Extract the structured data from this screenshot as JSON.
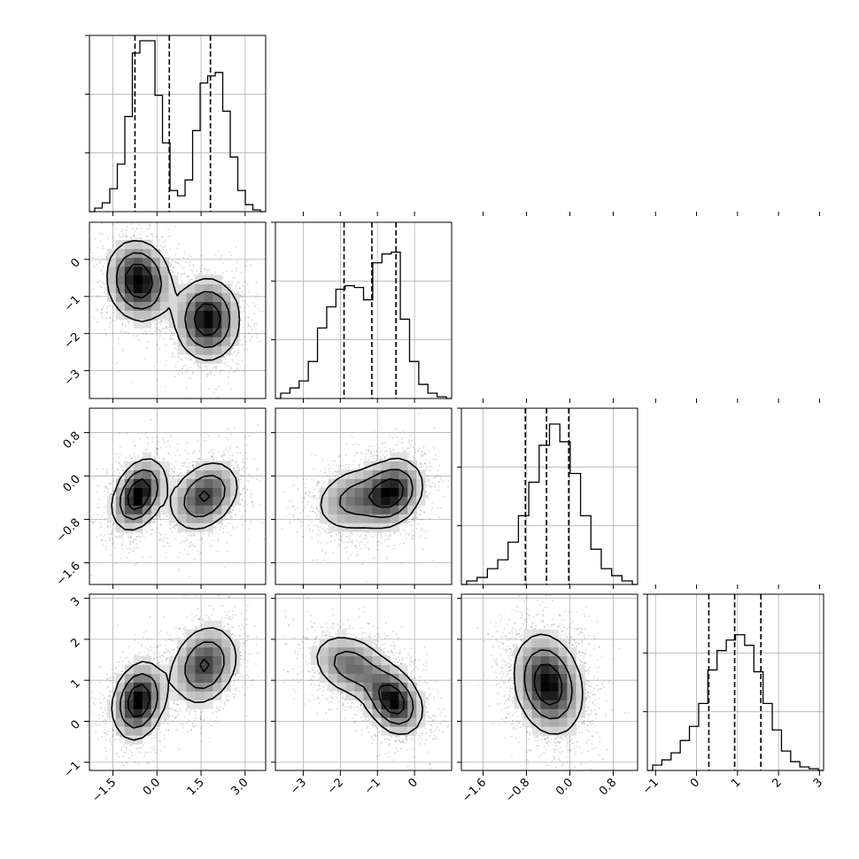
{
  "chart_data": {
    "type": "corner",
    "parameters": [
      {
        "range": [
          -2.3,
          3.7
        ],
        "ticks": [
          -1.5,
          0.0,
          1.5,
          3.0
        ],
        "tick_labels": [
          "−1.5",
          "0.0",
          "1.5",
          "3.0"
        ],
        "quantiles": [
          -0.75,
          0.42,
          1.82
        ],
        "hist_values": [
          0.02,
          0.05,
          0.13,
          0.27,
          0.54,
          0.9,
          0.97,
          0.97,
          0.66,
          0.39,
          0.12,
          0.09,
          0.18,
          0.46,
          0.73,
          0.77,
          0.79,
          0.57,
          0.31,
          0.12,
          0.04,
          0.01
        ]
      },
      {
        "range": [
          -3.75,
          1.0
        ],
        "ticks": [
          -3,
          -2,
          -1,
          0
        ],
        "tick_labels": [
          "−3",
          "−2",
          "−1",
          "0"
        ],
        "quantiles": [
          -1.9,
          -1.15,
          -0.5
        ],
        "hist_values": [
          0.03,
          0.06,
          0.1,
          0.21,
          0.4,
          0.52,
          0.62,
          0.64,
          0.63,
          0.56,
          0.77,
          0.82,
          0.83,
          0.45,
          0.21,
          0.08,
          0.03,
          0.01
        ]
      },
      {
        "range": [
          -2.0,
          1.25
        ],
        "ticks": [
          -1.6,
          -0.8,
          0.0,
          0.8
        ],
        "tick_labels": [
          "−1.6",
          "−0.8",
          "0.0",
          "0.8"
        ],
        "quantiles": [
          -0.82,
          -0.43,
          -0.02
        ],
        "hist_values": [
          0.02,
          0.04,
          0.09,
          0.14,
          0.24,
          0.39,
          0.58,
          0.79,
          0.91,
          0.81,
          0.63,
          0.39,
          0.2,
          0.09,
          0.05,
          0.02
        ]
      },
      {
        "range": [
          -1.2,
          3.1
        ],
        "ticks": [
          -1,
          0,
          1,
          2,
          3
        ],
        "tick_labels": [
          "−1",
          "0",
          "1",
          "2",
          "3"
        ],
        "quantiles": [
          0.3,
          0.93,
          1.57
        ],
        "hist_values": [
          0.03,
          0.06,
          0.1,
          0.17,
          0.25,
          0.38,
          0.57,
          0.68,
          0.74,
          0.77,
          0.71,
          0.56,
          0.38,
          0.23,
          0.11,
          0.05,
          0.02,
          0.01
        ]
      }
    ],
    "pairs": [
      {
        "row": 1,
        "col": 0,
        "clusters": [
          {
            "mx": -0.62,
            "my": -0.58,
            "sx": 0.55,
            "sy": 0.55,
            "rho": -0.1,
            "w": 0.5
          },
          {
            "mx": 1.72,
            "my": -1.62,
            "sx": 0.56,
            "sy": 0.56,
            "rho": 0.0,
            "w": 0.5
          }
        ]
      },
      {
        "row": 2,
        "col": 0,
        "clusters": [
          {
            "mx": -0.62,
            "my": -0.34,
            "sx": 0.45,
            "sy": 0.33,
            "rho": 0.35,
            "w": 0.5
          },
          {
            "mx": 1.62,
            "my": -0.37,
            "sx": 0.6,
            "sy": 0.33,
            "rho": 0.3,
            "w": 0.5
          }
        ]
      },
      {
        "row": 3,
        "col": 0,
        "clusters": [
          {
            "mx": -0.62,
            "my": 0.5,
            "sx": 0.45,
            "sy": 0.48,
            "rho": 0.2,
            "w": 0.5
          },
          {
            "mx": 1.62,
            "my": 1.37,
            "sx": 0.58,
            "sy": 0.5,
            "rho": 0.2,
            "w": 0.5
          }
        ]
      },
      {
        "row": 2,
        "col": 1,
        "clusters": [
          {
            "mx": -1.6,
            "my": -0.43,
            "sx": 0.58,
            "sy": 0.32,
            "rho": 0.2,
            "w": 0.45
          },
          {
            "mx": -0.6,
            "my": -0.3,
            "sx": 0.42,
            "sy": 0.32,
            "rho": 0.2,
            "w": 0.55
          }
        ]
      },
      {
        "row": 3,
        "col": 1,
        "clusters": [
          {
            "mx": -1.7,
            "my": 1.35,
            "sx": 0.56,
            "sy": 0.42,
            "rho": -0.3,
            "w": 0.45
          },
          {
            "mx": -0.58,
            "my": 0.5,
            "sx": 0.4,
            "sy": 0.42,
            "rho": -0.3,
            "w": 0.55
          }
        ]
      },
      {
        "row": 3,
        "col": 2,
        "clusters": [
          {
            "mx": -0.4,
            "my": 0.9,
            "sx": 0.32,
            "sy": 0.62,
            "rho": -0.2,
            "w": 1.0
          }
        ]
      }
    ]
  }
}
